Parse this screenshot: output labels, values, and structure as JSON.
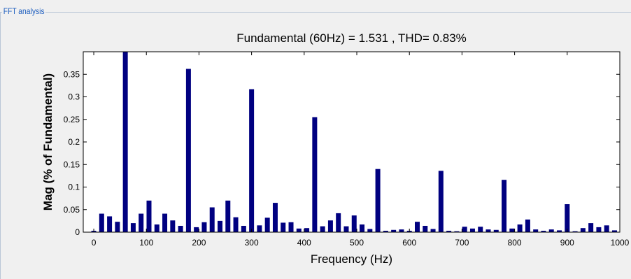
{
  "panel": {
    "title": "FFT analysis"
  },
  "colors": {
    "bar": "#000080",
    "axes": "#000000",
    "plot_background": "#ffffff",
    "page_background": "#f0f0f0"
  },
  "chart_data": {
    "type": "bar",
    "title": "Fundamental (60Hz) = 1.531 , THD= 0.83%",
    "xlabel": "Frequency (Hz)",
    "ylabel": "Mag (% of Fundamental)",
    "xlim": [
      -20,
      1000
    ],
    "ylim": [
      0,
      0.4
    ],
    "xticks": [
      0,
      100,
      200,
      300,
      400,
      500,
      600,
      700,
      800,
      900,
      1000
    ],
    "xtick_labels": [
      "0",
      "100",
      "200",
      "300",
      "400",
      "500",
      "600",
      "700",
      "800",
      "900",
      "1000"
    ],
    "yticks": [
      0,
      0.05,
      0.1,
      0.15,
      0.2,
      0.25,
      0.3,
      0.35
    ],
    "ytick_labels": [
      "0",
      "0.05",
      "0.1",
      "0.15",
      "0.2",
      "0.25",
      "0.3",
      "0.35"
    ],
    "grid": false,
    "x": [
      0,
      15,
      30,
      45,
      60,
      75,
      90,
      105,
      120,
      135,
      150,
      165,
      180,
      195,
      210,
      225,
      240,
      255,
      270,
      285,
      300,
      315,
      330,
      345,
      360,
      375,
      390,
      405,
      420,
      435,
      450,
      465,
      480,
      495,
      510,
      525,
      540,
      555,
      570,
      585,
      600,
      615,
      630,
      645,
      660,
      675,
      690,
      705,
      720,
      735,
      750,
      765,
      780,
      795,
      810,
      825,
      840,
      855,
      870,
      885,
      900,
      915,
      930,
      945,
      960,
      975,
      990
    ],
    "values": [
      0.003,
      0.041,
      0.035,
      0.023,
      0.4,
      0.02,
      0.041,
      0.07,
      0.017,
      0.041,
      0.026,
      0.014,
      0.362,
      0.011,
      0.022,
      0.055,
      0.025,
      0.07,
      0.033,
      0.014,
      0.317,
      0.015,
      0.032,
      0.065,
      0.021,
      0.022,
      0.008,
      0.009,
      0.255,
      0.013,
      0.026,
      0.042,
      0.013,
      0.037,
      0.017,
      0.007,
      0.14,
      0.003,
      0.005,
      0.006,
      0.003,
      0.023,
      0.014,
      0.007,
      0.136,
      0.003,
      0.002,
      0.012,
      0.008,
      0.012,
      0.006,
      0.005,
      0.116,
      0.008,
      0.017,
      0.028,
      0.006,
      0.003,
      0.006,
      0.004,
      0.062,
      0.002,
      0.009,
      0.02,
      0.011,
      0.015,
      0.004
    ]
  }
}
